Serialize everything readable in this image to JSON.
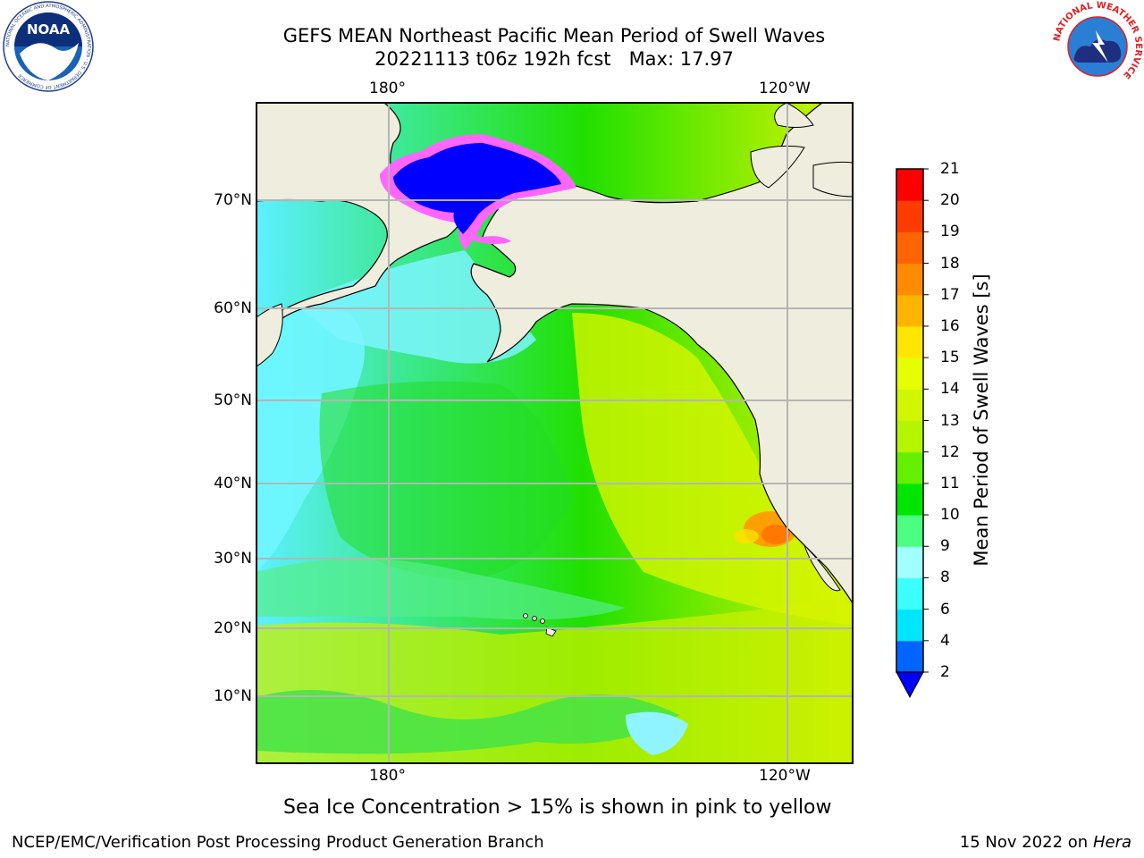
{
  "title": {
    "line1": "GEFS MEAN Northeast Pacific Mean Period of Swell Waves",
    "line2": "20221113 t06z 192h fcst",
    "max_label": "Max: 17.97"
  },
  "map": {
    "lon_labels_top": [
      "180°",
      "120°W"
    ],
    "lon_labels_bottom": [
      "180°",
      "120°W"
    ],
    "lat_labels": [
      "70°N",
      "60°N",
      "50°N",
      "40°N",
      "30°N",
      "20°N",
      "10°N"
    ],
    "colors": {
      "land": "#efedde",
      "coast": "#000000",
      "grid": "#b5b5b5",
      "ice_edge": "#ff66ff",
      "ice_core": "#0000ff"
    }
  },
  "colorbar": {
    "label": "Mean Period of Swell Waves [s]",
    "ticks": [
      "2",
      "4",
      "6",
      "8",
      "9",
      "10",
      "11",
      "12",
      "13",
      "14",
      "15",
      "16",
      "17",
      "18",
      "19",
      "20",
      "21"
    ],
    "colors": [
      "#0064ff",
      "#00e6ff",
      "#3cffff",
      "#a0ffff",
      "#4cff80",
      "#00e600",
      "#64f000",
      "#b4f500",
      "#d2f500",
      "#e6ff00",
      "#ffe600",
      "#ffb400",
      "#ff8c00",
      "#ff6400",
      "#ff3c00",
      "#ff0000"
    ],
    "extend_color": "#0000ff"
  },
  "note": "Sea Ice Concentration > 15% is shown in pink to yellow",
  "footer": {
    "left": "NCEP/EMC/Verification Post Processing Product Generation Branch",
    "right_date": "15 Nov 2022 on",
    "right_machine": "Hera"
  },
  "logos": {
    "noaa": "NOAA",
    "noaa_ring": "NATIONAL OCEANIC AND ATMOSPHERIC ADMINISTRATION · U.S. DEPARTMENT OF COMMERCE",
    "nws_ring": "NATIONAL WEATHER SERVICE"
  }
}
